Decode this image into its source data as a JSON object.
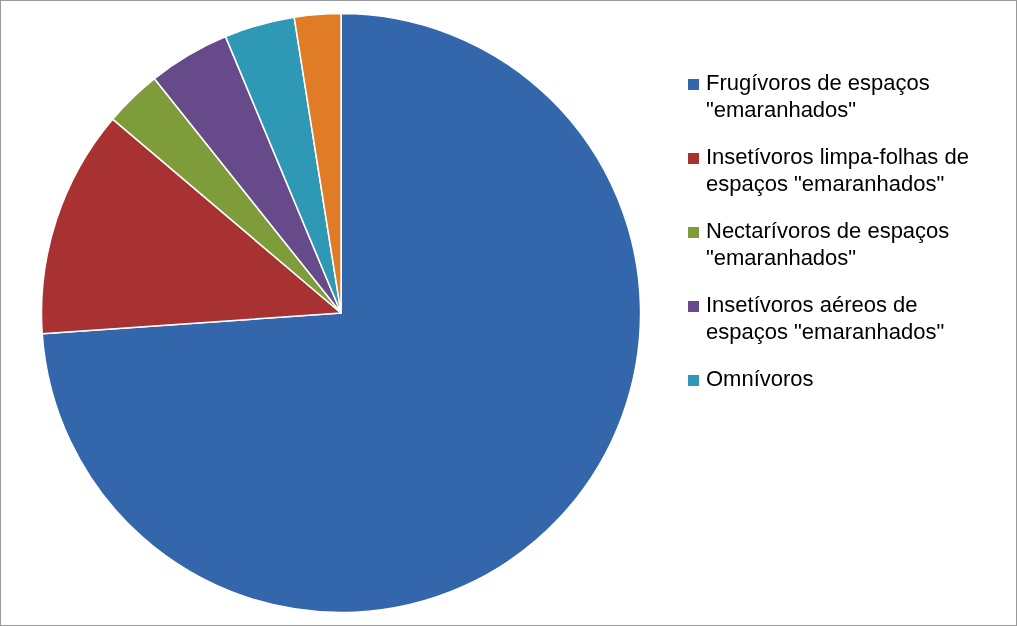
{
  "chart_data": {
    "type": "pie",
    "categories": [
      "Frugívoros de espaços \"emaranhados\"",
      "Insetívoros limpa-folhas de espaços \"emaranhados\"",
      "Nectarívoros de espaços \"emaranhados\"",
      "Insetívoros aéreos  de espaços \"emaranhados\"",
      "Omnívoros",
      null
    ],
    "values": [
      73.9,
      12.3,
      3.1,
      4.4,
      3.8,
      2.5
    ],
    "colors": [
      "#3466ac",
      "#a83232",
      "#7f9c3a",
      "#674a8a",
      "#2f98b4",
      "#e07b26"
    ],
    "legend": "right"
  }
}
